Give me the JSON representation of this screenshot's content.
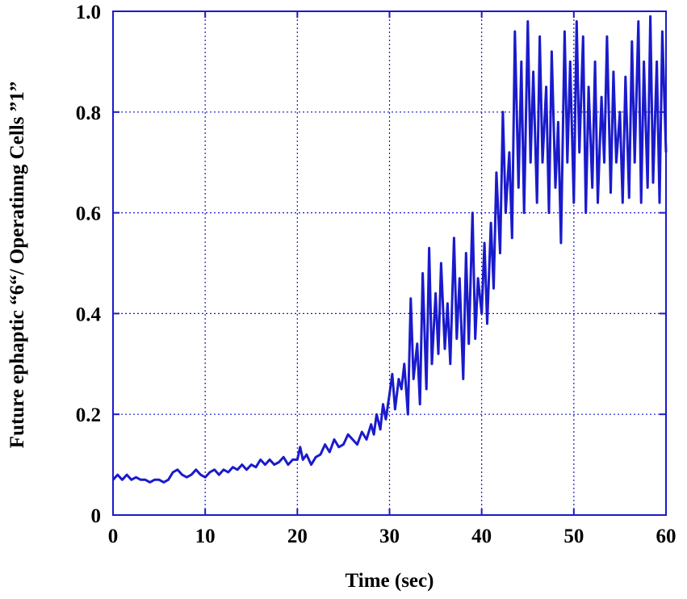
{
  "chart_data": {
    "type": "line",
    "title": "",
    "xlabel": "Time  (sec)",
    "ylabel": "Future ephaptic “6“/ Operatinng Cells ”1”",
    "xlim": [
      0,
      60
    ],
    "ylim": [
      0,
      1.0
    ],
    "xticks": [
      0,
      10,
      20,
      30,
      40,
      50,
      60
    ],
    "xtick_labels": [
      "0",
      "10",
      "20",
      "30",
      "40",
      "50",
      "60"
    ],
    "yticks": [
      0,
      0.2,
      0.4,
      0.6,
      0.8,
      1.0
    ],
    "ytick_labels": [
      "0",
      "0.2",
      "0.4",
      "0.6",
      "0.8",
      "1.0"
    ],
    "grid": true,
    "grid_style": "dotted",
    "line_color": "#1a1acc",
    "axis_color": "#1a1acc",
    "series": [
      {
        "x": [
          0,
          0.5,
          1,
          1.5,
          2,
          2.5,
          3,
          3.5,
          4,
          4.5,
          5,
          5.5,
          6,
          6.5,
          7,
          7.5,
          8,
          8.5,
          9,
          9.5,
          10,
          10.5,
          11,
          11.5,
          12,
          12.5,
          13,
          13.5,
          14,
          14.5,
          15,
          15.5,
          16,
          16.5,
          17,
          17.5,
          18,
          18.5,
          19,
          19.5,
          20,
          20.3,
          20.6,
          21,
          21.5,
          22,
          22.5,
          23,
          23.5,
          24,
          24.5,
          25,
          25.5,
          26,
          26.5,
          27,
          27.5,
          28,
          28.3,
          28.6,
          29,
          29.3,
          29.6,
          30,
          30.3,
          30.6,
          31,
          31.3,
          31.6,
          32,
          32.3,
          32.6,
          33,
          33.3,
          33.6,
          34,
          34.3,
          34.6,
          35,
          35.3,
          35.6,
          36,
          36.3,
          36.6,
          37,
          37.3,
          37.6,
          38,
          38.3,
          38.6,
          39,
          39.3,
          39.6,
          40,
          40.3,
          40.6,
          41,
          41.3,
          41.6,
          42,
          42.3,
          42.6,
          43,
          43.3,
          43.6,
          44,
          44.3,
          44.6,
          45,
          45.3,
          45.6,
          46,
          46.3,
          46.6,
          47,
          47.3,
          47.6,
          48,
          48.3,
          48.6,
          49,
          49.3,
          49.6,
          50,
          50.3,
          50.6,
          51,
          51.3,
          51.6,
          52,
          52.3,
          52.6,
          53,
          53.3,
          53.6,
          54,
          54.3,
          54.6,
          55,
          55.3,
          55.6,
          56,
          56.3,
          56.6,
          57,
          57.3,
          57.6,
          58,
          58.3,
          58.6,
          59,
          59.3,
          59.6,
          60
        ],
        "values": [
          0.07,
          0.08,
          0.07,
          0.08,
          0.07,
          0.075,
          0.07,
          0.07,
          0.065,
          0.07,
          0.07,
          0.065,
          0.07,
          0.085,
          0.09,
          0.08,
          0.075,
          0.08,
          0.09,
          0.08,
          0.075,
          0.085,
          0.09,
          0.08,
          0.09,
          0.085,
          0.095,
          0.09,
          0.1,
          0.09,
          0.1,
          0.095,
          0.11,
          0.1,
          0.11,
          0.1,
          0.105,
          0.115,
          0.1,
          0.11,
          0.11,
          0.135,
          0.11,
          0.12,
          0.1,
          0.115,
          0.12,
          0.14,
          0.125,
          0.15,
          0.135,
          0.14,
          0.16,
          0.15,
          0.14,
          0.165,
          0.15,
          0.18,
          0.16,
          0.2,
          0.17,
          0.22,
          0.19,
          0.24,
          0.28,
          0.21,
          0.27,
          0.25,
          0.3,
          0.2,
          0.43,
          0.27,
          0.34,
          0.22,
          0.48,
          0.25,
          0.53,
          0.3,
          0.44,
          0.32,
          0.5,
          0.33,
          0.42,
          0.3,
          0.55,
          0.35,
          0.47,
          0.27,
          0.52,
          0.34,
          0.6,
          0.35,
          0.47,
          0.4,
          0.54,
          0.38,
          0.58,
          0.45,
          0.68,
          0.52,
          0.8,
          0.6,
          0.72,
          0.55,
          0.96,
          0.65,
          0.9,
          0.6,
          0.98,
          0.7,
          0.88,
          0.62,
          0.95,
          0.7,
          0.85,
          0.6,
          0.92,
          0.65,
          0.78,
          0.54,
          0.96,
          0.7,
          0.9,
          0.62,
          0.98,
          0.72,
          0.95,
          0.6,
          0.85,
          0.65,
          0.9,
          0.62,
          0.83,
          0.7,
          0.95,
          0.64,
          0.88,
          0.7,
          0.8,
          0.62,
          0.87,
          0.63,
          0.94,
          0.7,
          0.98,
          0.62,
          0.9,
          0.65,
          0.99,
          0.66,
          0.9,
          0.62,
          0.96,
          0.72
        ]
      }
    ]
  }
}
